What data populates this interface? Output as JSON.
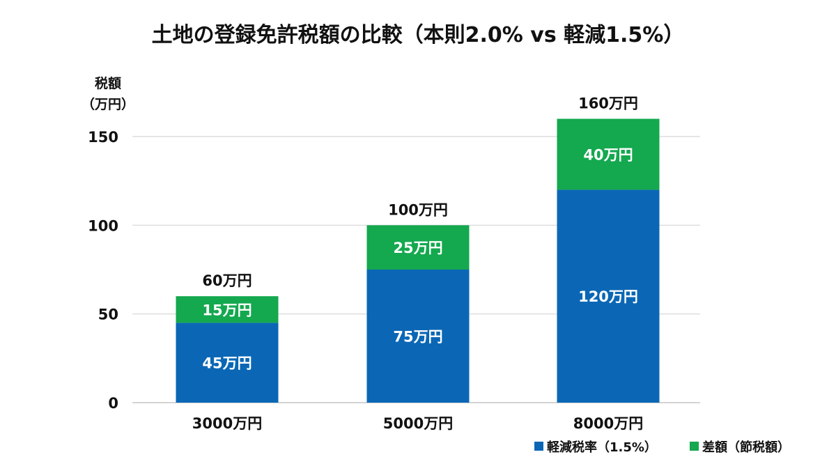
{
  "chart_data": {
    "type": "bar",
    "stacked": true,
    "title": "土地の登録免許税額の比較（本則2.0% vs 軽減1.5%）",
    "ylabel_line1": "税額",
    "ylabel_line2": "（万円）",
    "xlabel": "",
    "ylim": [
      0,
      160
    ],
    "yticks": [
      0,
      50,
      100,
      150
    ],
    "grid": true,
    "legend_position": "bottom-right",
    "categories": [
      "3000万円",
      "5000万円",
      "8000万円"
    ],
    "series": [
      {
        "name": "軽減税率（1.5%）",
        "values": [
          45,
          75,
          120
        ],
        "labels": [
          "45万円",
          "75万円",
          "120万円"
        ],
        "color": "#0b67b5"
      },
      {
        "name": "差額（節税額）",
        "values": [
          15,
          25,
          40
        ],
        "labels": [
          "15万円",
          "25万円",
          "40万円"
        ],
        "color": "#14a84f"
      }
    ],
    "totals": [
      60,
      100,
      160
    ],
    "total_labels": [
      "60万円",
      "100万円",
      "160万円"
    ]
  }
}
